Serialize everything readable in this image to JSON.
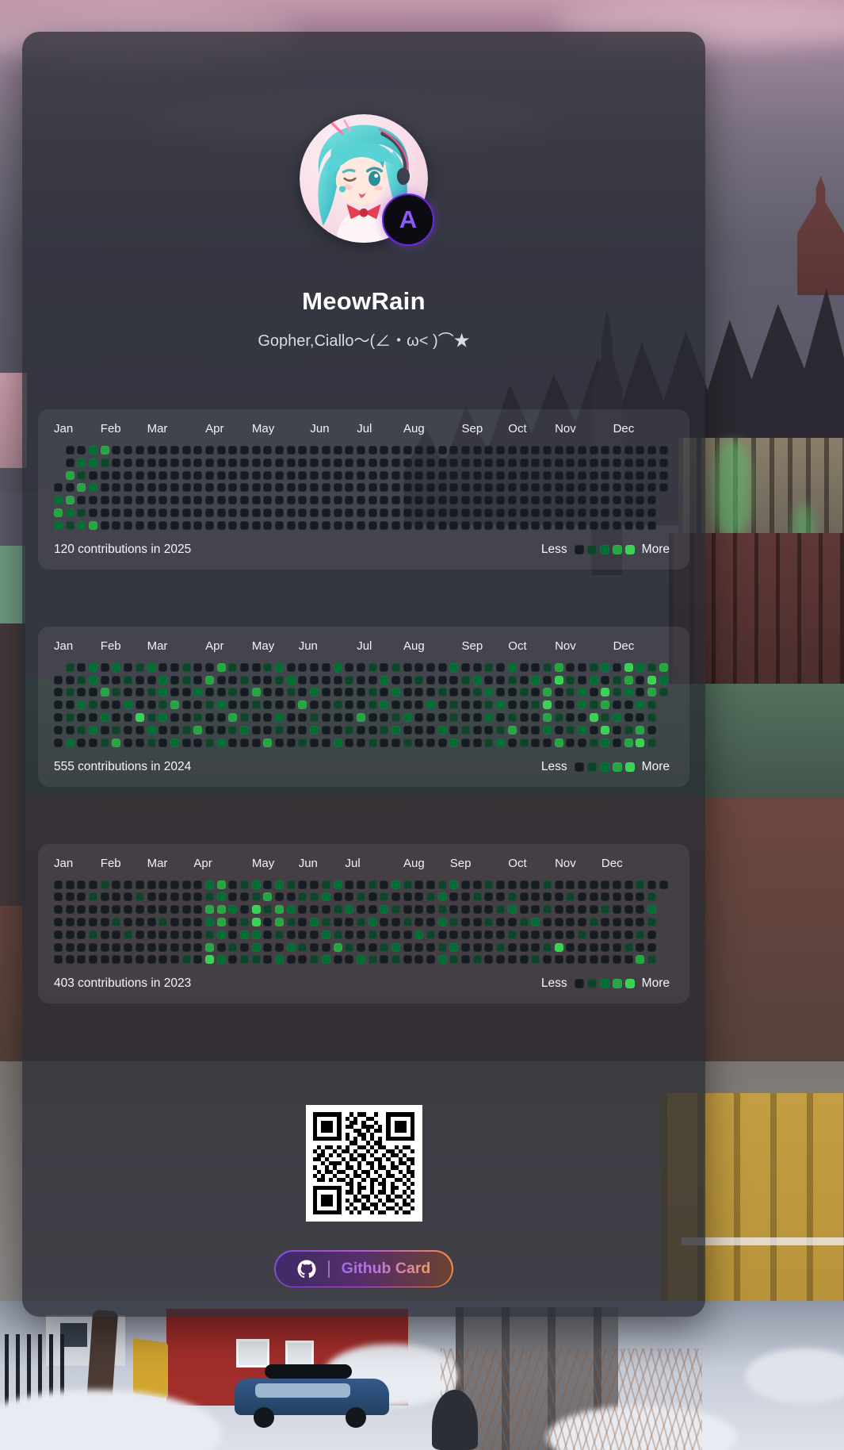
{
  "profile": {
    "name": "MeowRain",
    "bio": "Gopher,Ciallo～(∠・ω< )⌒★",
    "badge_letter": "A"
  },
  "months": [
    "Jan",
    "Feb",
    "Mar",
    "Apr",
    "May",
    "Jun",
    "Jul",
    "Aug",
    "Sep",
    "Oct",
    "Nov",
    "Dec"
  ],
  "legend": {
    "less": "Less",
    "more": "More"
  },
  "button": {
    "label": "Github Card"
  },
  "colors": {
    "levels": [
      "#161b22",
      "#0e4429",
      "#006d32",
      "#26a641",
      "#39d353"
    ],
    "accent_purple": "#8b5cf6",
    "accent_orange": "#f09a5e"
  },
  "charts": [
    {
      "year": 2025,
      "summary": "120 contributions in 2025",
      "rows": [
        "00023",
        "00221",
        "03100",
        "00320",
        "23000",
        "32100",
        "21230"
      ]
    },
    {
      "year": 2024,
      "summary": "555 contributions in 2024",
      "rows": [
        "01020201200100310012000020010100002001020013001204213",
        "00120010020103001001200001002001000120010204102013042",
        "01003100120020010300102000010200010012001030120412031",
        "00210020013001200100030010012000201001200140021300210",
        "01002004120010031002001000300120001002010031004120013",
        "00120100200130012001002001001200020100130020120401301",
        "02001300102001200030010020010010002001201003001203412"
      ]
    },
    {
      "year": 2023,
      "summary": "403 contributions in 2023",
      "rows": [
        "00001000000002301202100120010210012001000010000000100",
        "00010001000001200130011200101000120010010000100000012",
        "00000000000003320413200012002100010000120010000100021",
        "00000100010002301403102100120010021001001200001000010",
        "00010010000001202201000210010002100000010000010000100",
        "00000000000003010200210031001200012000100014000001000",
        "00000000000104201102001200210100021010000100000000310"
      ]
    }
  ],
  "qr": {
    "rows": [
      "1111111001011001001111111",
      "1000001010100110001000001",
      "1011101001101001001011101",
      "1011101011001110101011101",
      "1011101000110101101011101",
      "1000001010011010001000001",
      "1111111010101010101111111",
      "0000000001100101100000000",
      "0101101010011010110010110",
      "1010010110100101001101001",
      "0110101001011010010110100",
      "1101000101101001101001011",
      "0010111010010110100101101",
      "1001010011010010110110010",
      "0101101100101101001001011",
      "1010010010110100101100101",
      "0110101101001011010011010",
      "0000000011010010110100101",
      "1111111001011010010110010",
      "1000001011010010110100101",
      "1011101000101101001011010",
      "1011101010110100101100101",
      "1011101001001011010010110",
      "1000001010101101001101001",
      "1111111001010010110010110"
    ]
  }
}
